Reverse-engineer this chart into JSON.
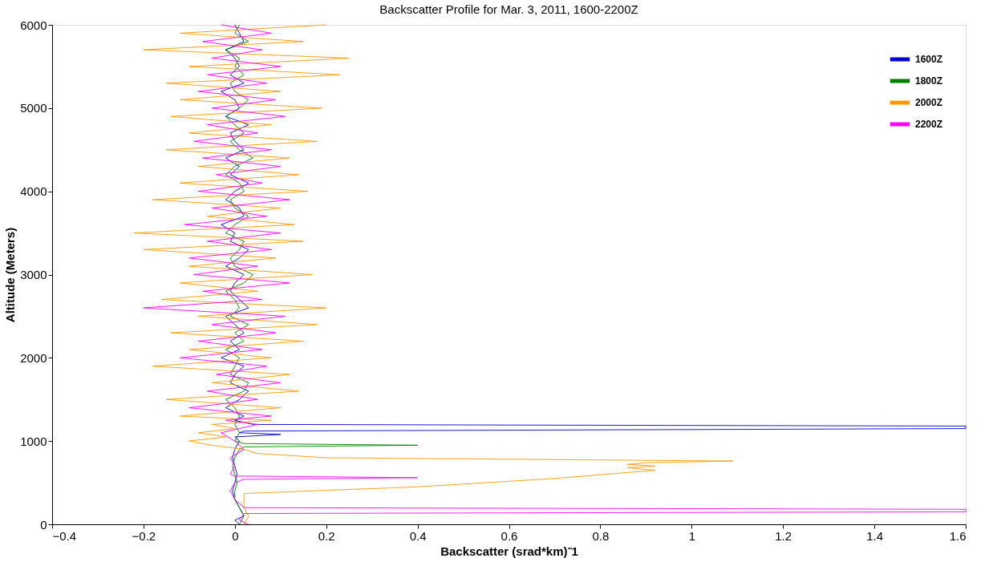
{
  "chart_data": {
    "type": "line",
    "title": "Backscatter Profile for Mar. 3, 2011, 1600-2200Z",
    "xlabel": "Backscatter (srad*km)⁻1",
    "ylabel": "Altitude (Meters)",
    "xlim": [
      -0.4,
      1.6
    ],
    "xticks": [
      -0.4,
      -0.2,
      0,
      0.2,
      0.4,
      0.6,
      0.8,
      1,
      1.2,
      1.4,
      1.6
    ],
    "ylim": [
      0,
      6000
    ],
    "yticks": [
      0,
      1000,
      2000,
      3000,
      4000,
      5000,
      6000
    ],
    "grid": false,
    "legend": "top right",
    "marker": "none",
    "line_style": "solid",
    "series": [
      {
        "name": "1600Z",
        "color": "#0000cc",
        "x": [
          0.01,
          0.0,
          0.02,
          0.01,
          0.0,
          -0.005,
          0.0,
          0.005,
          0.0,
          -0.005,
          0.0,
          0.01,
          0.0,
          0.1,
          0.01,
          0.02,
          1.6,
          1.6,
          0.04,
          0.0,
          0.02,
          -0.02,
          0.01,
          0.03,
          -0.01,
          0.0,
          0.02,
          -0.03,
          0.01,
          -0.01,
          0.02,
          0.0,
          -0.02,
          0.03,
          0.01,
          -0.01,
          0.0,
          0.02,
          -0.02,
          0.01,
          0.03,
          -0.01,
          0.0,
          -0.03,
          0.02,
          0.01,
          -0.02,
          0.0,
          0.03,
          -0.01,
          0.01,
          -0.02,
          0.02,
          0.0,
          -0.01,
          0.03,
          -0.02,
          0.01,
          0.0,
          -0.03,
          0.02,
          -0.01,
          0.01,
          0.0,
          -0.02,
          0.02,
          0.01,
          0.0
        ],
        "values": [
          0,
          50,
          100,
          200,
          300,
          400,
          500,
          600,
          700,
          800,
          900,
          1000,
          1050,
          1080,
          1100,
          1120,
          1150,
          1180,
          1200,
          1250,
          1300,
          1400,
          1500,
          1600,
          1700,
          1800,
          1900,
          2000,
          2100,
          2200,
          2300,
          2400,
          2500,
          2600,
          2700,
          2800,
          2900,
          3000,
          3100,
          3200,
          3300,
          3400,
          3500,
          3600,
          3700,
          3800,
          3900,
          4000,
          4100,
          4200,
          4300,
          4400,
          4500,
          4600,
          4700,
          4800,
          4900,
          5000,
          5100,
          5200,
          5300,
          5400,
          5500,
          5600,
          5700,
          5800,
          5900,
          6000
        ]
      },
      {
        "name": "1800Z",
        "color": "#007f00",
        "x": [
          0.01,
          0.02,
          0.01,
          0.0,
          0.0,
          0.005,
          0.0,
          -0.005,
          0.0,
          0.01,
          0.02,
          0.4,
          0.02,
          0.0,
          0.01,
          0.0,
          0.01,
          0.0,
          -0.02,
          0.02,
          0.03,
          -0.01,
          0.0,
          0.01,
          -0.02,
          0.02,
          0.0,
          0.03,
          -0.01,
          0.01,
          0.0,
          -0.02,
          0.02,
          0.04,
          0.0,
          -0.01,
          0.01,
          0.02,
          -0.02,
          0.0,
          0.03,
          0.0,
          -0.01,
          0.02,
          0.01,
          -0.02,
          0.0,
          0.04,
          0.01,
          -0.01,
          0.02,
          0.0,
          -0.02,
          0.01,
          0.03,
          0.0,
          -0.01,
          0.02,
          0.0,
          0.01,
          -0.02,
          0.03,
          0.0,
          0.01
        ],
        "values": [
          0,
          100,
          200,
          300,
          400,
          500,
          600,
          700,
          800,
          900,
          930,
          950,
          970,
          1000,
          1100,
          1200,
          1300,
          1400,
          1500,
          1600,
          1700,
          1800,
          1900,
          2000,
          2100,
          2200,
          2300,
          2400,
          2500,
          2600,
          2700,
          2800,
          2900,
          3000,
          3100,
          3200,
          3300,
          3400,
          3500,
          3600,
          3700,
          3800,
          3900,
          4000,
          4100,
          4200,
          4300,
          4400,
          4500,
          4600,
          4700,
          4800,
          4900,
          5000,
          5100,
          5200,
          5300,
          5400,
          5500,
          5600,
          5700,
          5800,
          5900,
          6000
        ]
      },
      {
        "name": "2000Z",
        "color": "#ff9900",
        "x": [
          0.02,
          0.03,
          0.02,
          0.02,
          0.02,
          0.4,
          0.7,
          0.92,
          0.86,
          0.92,
          0.86,
          0.9,
          1.09,
          0.2,
          0.05,
          0.02,
          -0.05,
          -0.1,
          -0.02,
          -0.08,
          0.0,
          -0.05,
          0.08,
          -0.12,
          0.1,
          -0.15,
          0.14,
          -0.05,
          0.12,
          -0.18,
          0.08,
          -0.1,
          0.15,
          -0.14,
          0.18,
          -0.08,
          0.2,
          -0.16,
          0.05,
          -0.12,
          0.17,
          -0.1,
          0.09,
          -0.2,
          0.15,
          -0.22,
          0.13,
          -0.06,
          0.1,
          -0.18,
          0.16,
          -0.12,
          0.14,
          -0.08,
          0.12,
          -0.15,
          0.18,
          -0.1,
          0.08,
          -0.14,
          0.19,
          -0.12,
          0.1,
          -0.15,
          0.23,
          -0.1,
          0.25,
          -0.2,
          0.15,
          -0.12,
          0.2
        ],
        "values": [
          0,
          100,
          200,
          300,
          370,
          450,
          550,
          650,
          680,
          700,
          720,
          740,
          760,
          800,
          850,
          900,
          950,
          1000,
          1050,
          1100,
          1150,
          1200,
          1250,
          1300,
          1400,
          1500,
          1600,
          1700,
          1800,
          1900,
          2000,
          2100,
          2200,
          2300,
          2400,
          2500,
          2600,
          2700,
          2800,
          2900,
          3000,
          3100,
          3200,
          3300,
          3400,
          3500,
          3600,
          3700,
          3800,
          3900,
          4000,
          4100,
          4200,
          4300,
          4400,
          4500,
          4600,
          4700,
          4800,
          4900,
          5000,
          5100,
          5200,
          5300,
          5400,
          5500,
          5600,
          5700,
          5800,
          5900,
          6000
        ]
      },
      {
        "name": "2200Z",
        "color": "#ff00ff",
        "x": [
          0.03,
          0.01,
          0.02,
          1.6,
          1.6,
          0.02,
          0.0,
          -0.01,
          0.0,
          0.02,
          0.4,
          0.0,
          -0.01,
          0.0,
          -0.01,
          0.02,
          0.0,
          -0.03,
          0.05,
          -0.02,
          0.08,
          -0.1,
          0.05,
          -0.06,
          0.1,
          -0.04,
          0.07,
          -0.12,
          0.06,
          -0.08,
          0.09,
          -0.05,
          0.11,
          -0.2,
          0.06,
          -0.07,
          0.12,
          -0.09,
          0.05,
          -0.1,
          0.08,
          -0.06,
          0.1,
          -0.11,
          0.07,
          -0.05,
          0.12,
          -0.08,
          0.06,
          -0.04,
          0.1,
          -0.07,
          0.08,
          -0.09,
          0.05,
          -0.06,
          0.11,
          -0.05,
          0.09,
          -0.08,
          0.07,
          -0.06,
          0.1,
          -0.05,
          0.06,
          -0.07,
          0.08,
          -0.03
        ],
        "values": [
          0,
          50,
          130,
          150,
          180,
          200,
          300,
          400,
          500,
          540,
          560,
          580,
          600,
          700,
          800,
          900,
          1000,
          1100,
          1200,
          1250,
          1300,
          1400,
          1500,
          1600,
          1700,
          1800,
          1900,
          2000,
          2100,
          2200,
          2300,
          2400,
          2500,
          2600,
          2700,
          2800,
          2900,
          3000,
          3100,
          3200,
          3300,
          3400,
          3500,
          3600,
          3700,
          3800,
          3900,
          4000,
          4100,
          4200,
          4300,
          4400,
          4500,
          4600,
          4700,
          4800,
          4900,
          5000,
          5100,
          5200,
          5300,
          5400,
          5500,
          5600,
          5700,
          5800,
          5900,
          6000
        ]
      }
    ]
  }
}
